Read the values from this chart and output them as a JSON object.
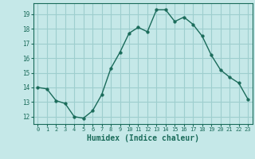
{
  "x": [
    0,
    1,
    2,
    3,
    4,
    5,
    6,
    7,
    8,
    9,
    10,
    11,
    12,
    13,
    14,
    15,
    16,
    17,
    18,
    19,
    20,
    21,
    22,
    23
  ],
  "y": [
    14.0,
    13.9,
    13.1,
    12.9,
    12.0,
    11.9,
    12.4,
    13.5,
    15.3,
    16.4,
    17.7,
    18.1,
    17.8,
    19.3,
    19.3,
    18.5,
    18.8,
    18.3,
    17.5,
    16.2,
    15.2,
    14.7,
    14.3,
    13.2
  ],
  "line_color": "#1a6b5a",
  "marker": "o",
  "marker_size": 2.5,
  "bg_color": "#c5e8e8",
  "grid_color": "#9ecece",
  "tick_color": "#1a6b5a",
  "xlabel": "Humidex (Indice chaleur)",
  "xlabel_fontsize": 7,
  "ylabel_ticks": [
    12,
    13,
    14,
    15,
    16,
    17,
    18,
    19
  ],
  "xlim": [
    -0.5,
    23.5
  ],
  "ylim": [
    11.5,
    19.75
  ]
}
